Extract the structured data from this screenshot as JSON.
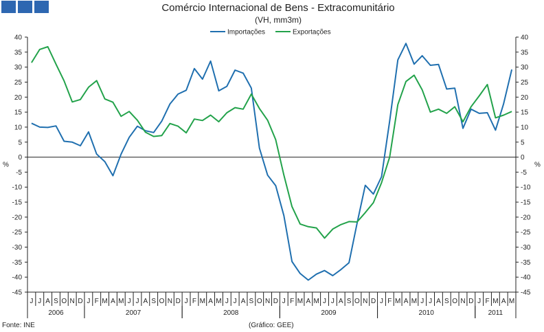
{
  "header": {
    "title": "Comércio Internacional de Bens - Extracomunitário",
    "subtitle": "(VH, mm3m)"
  },
  "footer": {
    "source": "Fonte: INE",
    "credit": "(Gráfico: GEE)"
  },
  "chart_data": {
    "type": "line",
    "title": "Comércio Internacional de Bens - Extracomunitário",
    "subtitle": "(VH, mm3m)",
    "ylabel": "%",
    "ylabel_right": "%",
    "ylim": [
      -45,
      40
    ],
    "ytick_step": 5,
    "grid": false,
    "legend": "top-center",
    "month_labels": [
      "J",
      "J",
      "A",
      "S",
      "O",
      "N",
      "D",
      "J",
      "F",
      "M",
      "A",
      "M",
      "J",
      "J",
      "A",
      "S",
      "O",
      "N",
      "D",
      "J",
      "F",
      "M",
      "A",
      "M",
      "J",
      "J",
      "A",
      "S",
      "O",
      "N",
      "D",
      "J",
      "F",
      "M",
      "A",
      "M",
      "J",
      "J",
      "A",
      "S",
      "O",
      "N",
      "D",
      "J",
      "F",
      "M",
      "A",
      "M",
      "J",
      "J",
      "A",
      "S",
      "O",
      "N",
      "D",
      "J",
      "F",
      "M",
      "A",
      "M"
    ],
    "year_labels": [
      {
        "label": "2006",
        "start": 0,
        "count": 7
      },
      {
        "label": "2007",
        "start": 7,
        "count": 12
      },
      {
        "label": "2008",
        "start": 19,
        "count": 12
      },
      {
        "label": "2009",
        "start": 31,
        "count": 12
      },
      {
        "label": "2010",
        "start": 43,
        "count": 12
      },
      {
        "label": "2011",
        "start": 55,
        "count": 5
      }
    ],
    "series": [
      {
        "name": "Importações",
        "color": "#1f6faf",
        "values": [
          11.3,
          10,
          9.9,
          10.4,
          5.3,
          5,
          3.8,
          8.4,
          1,
          -1.5,
          -6.2,
          1,
          6.6,
          10.3,
          8.8,
          8.2,
          12,
          17.7,
          21,
          22.3,
          29.5,
          26,
          32,
          22.1,
          23.6,
          29,
          28,
          23,
          3,
          -6,
          -9.5,
          -19.5,
          -34.8,
          -38.8,
          -41,
          -39,
          -37.8,
          -39.5,
          -37.5,
          -35.2,
          -22,
          -9.4,
          -12.3,
          -6.5,
          12,
          32.4,
          37.9,
          31,
          33.8,
          30.6,
          30.9,
          22.7,
          23,
          9.6,
          16,
          14.6,
          14.8,
          9,
          17.8,
          29.2
        ]
      },
      {
        "name": "Exportações",
        "color": "#22a24a",
        "values": [
          31.5,
          35.9,
          36.8,
          31,
          25.4,
          18.4,
          19.2,
          23.3,
          25.5,
          19.4,
          18.3,
          13.6,
          15.2,
          12.3,
          8.3,
          6.9,
          7.2,
          11.2,
          10.3,
          8.1,
          12.7,
          12.2,
          14,
          11.8,
          14.8,
          16.5,
          16,
          21,
          16.2,
          12.3,
          5.8,
          -6,
          -16.5,
          -22.3,
          -23.2,
          -23.6,
          -27,
          -24,
          -22.5,
          -21.5,
          -21.6,
          -18.5,
          -15.2,
          -8.5,
          0,
          17.5,
          25.2,
          27.3,
          22.4,
          15,
          16,
          14.6,
          16.8,
          11.8,
          16.8,
          20.4,
          24.2,
          13.1,
          14,
          15.2
        ]
      }
    ]
  }
}
